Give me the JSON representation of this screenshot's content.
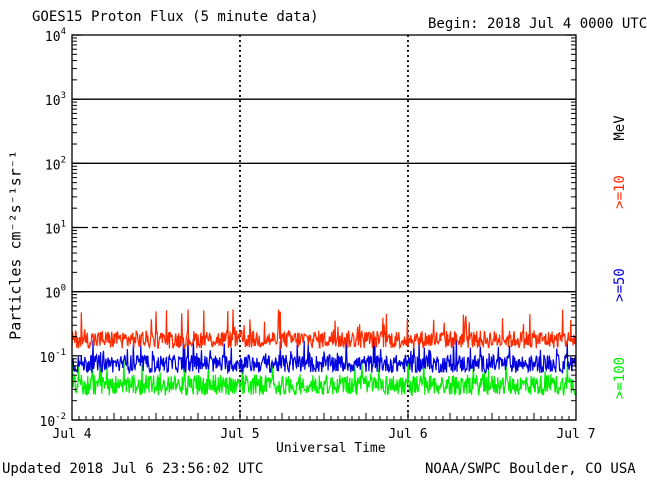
{
  "header": {
    "title": "GOES15 Proton Flux (5 minute data)",
    "begin": "Begin: 2018 Jul 4 0000 UTC"
  },
  "footer": {
    "updated": "Updated 2018 Jul  6 23:56:02 UTC",
    "source": "NOAA/SWPC Boulder, CO USA"
  },
  "chart_data": {
    "type": "line",
    "title": "GOES15 Proton Flux (5 minute data)",
    "xlabel": "Universal Time",
    "ylabel": "Particles cm⁻²s⁻¹sr⁻¹",
    "y_scale": "log",
    "ylim": [
      0.01,
      10000
    ],
    "y_ticks": [
      {
        "value": 0.01,
        "base": "10",
        "exp": "-2"
      },
      {
        "value": 0.1,
        "base": "10",
        "exp": "-1"
      },
      {
        "value": 1,
        "base": "10",
        "exp": "0"
      },
      {
        "value": 10,
        "base": "10",
        "exp": "1"
      },
      {
        "value": 100,
        "base": "10",
        "exp": "2"
      },
      {
        "value": 1000,
        "base": "10",
        "exp": "3"
      },
      {
        "value": 10000,
        "base": "10",
        "exp": "4"
      }
    ],
    "x_range_days": [
      0,
      3
    ],
    "x_ticks": [
      {
        "day": 0,
        "label": "Jul 4"
      },
      {
        "day": 1,
        "label": "Jul 5"
      },
      {
        "day": 2,
        "label": "Jul 6"
      },
      {
        "day": 3,
        "label": "Jul 7"
      }
    ],
    "threshold_lines": [
      {
        "value": 1,
        "style": "solid"
      },
      {
        "value": 10,
        "style": "dashed"
      },
      {
        "value": 100,
        "style": "solid"
      },
      {
        "value": 1000,
        "style": "solid"
      }
    ],
    "unit_label": "MeV",
    "series": [
      {
        "name": ">=10",
        "color": "#ff2a00",
        "typical": 0.18,
        "low": 0.12,
        "high": 0.55
      },
      {
        "name": ">=50",
        "color": "#0000e0",
        "typical": 0.075,
        "low": 0.05,
        "high": 0.2
      },
      {
        "name": ">=100",
        "color": "#00ee00",
        "typical": 0.035,
        "low": 0.022,
        "high": 0.09
      }
    ]
  }
}
